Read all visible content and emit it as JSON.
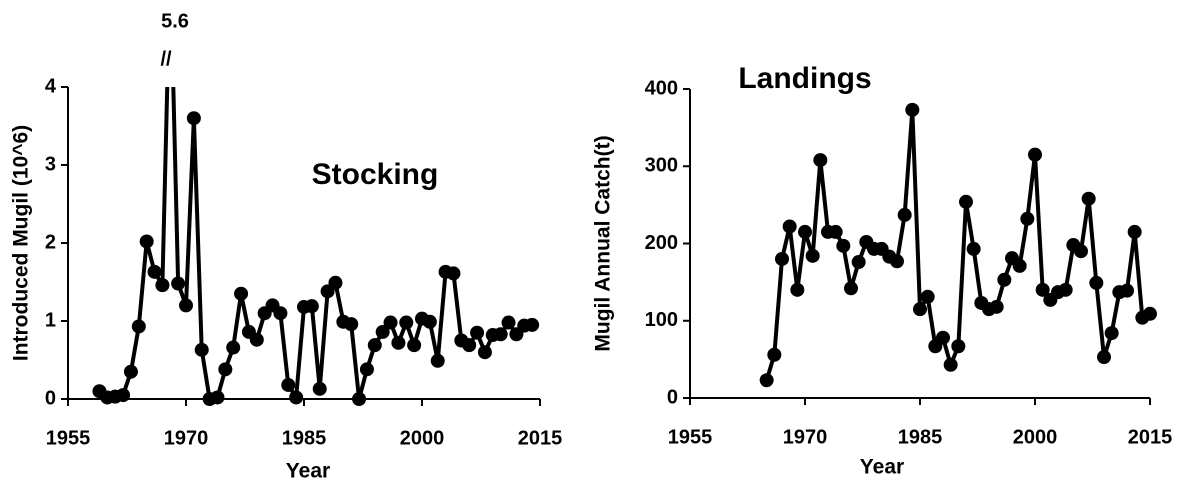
{
  "chart_data": [
    {
      "type": "line",
      "title": "Stocking",
      "x_label": "Year",
      "y_label": "Introduced  Mugil (10^6)",
      "peak_label": "5.6",
      "break_mark": "//",
      "color": "#000000",
      "x": [
        1959,
        1960,
        1961,
        1962,
        1963,
        1964,
        1965,
        1966,
        1967,
        1968,
        1969,
        1970,
        1971,
        1972,
        1973,
        1974,
        1975,
        1976,
        1977,
        1978,
        1979,
        1980,
        1981,
        1982,
        1983,
        1984,
        1985,
        1986,
        1987,
        1988,
        1989,
        1990,
        1991,
        1992,
        1993,
        1994,
        1995,
        1996,
        1997,
        1998,
        1999,
        2000,
        2001,
        2002,
        2003,
        2004,
        2005,
        2006,
        2007,
        2008,
        2009,
        2010,
        2011,
        2012,
        2013,
        2014
      ],
      "values": [
        0.1,
        0.02,
        0.03,
        0.05,
        0.35,
        0.93,
        2.02,
        1.63,
        1.46,
        5.6,
        1.48,
        1.2,
        3.6,
        0.63,
        0,
        0.02,
        0.38,
        0.66,
        1.35,
        0.86,
        0.76,
        1.1,
        1.2,
        1.1,
        0.18,
        0.02,
        1.18,
        1.19,
        0.13,
        1.38,
        1.49,
        0.99,
        0.96,
        0,
        0.38,
        0.69,
        0.86,
        0.98,
        0.72,
        0.98,
        0.69,
        1.03,
        0.99,
        0.49,
        1.63,
        1.61,
        0.75,
        0.69,
        0.85,
        0.6,
        0.82,
        0.83,
        0.98,
        0.83,
        0.94,
        0.95
      ],
      "xlim": [
        1955,
        2015
      ],
      "xticks": [
        1955,
        1970,
        1985,
        2000,
        2015
      ],
      "ylim": [
        0,
        4
      ],
      "yticks": [
        0,
        1,
        2,
        3,
        4
      ]
    },
    {
      "type": "line",
      "title": "Landings",
      "x_label": "Year",
      "y_label": "Mugil Annual Catch(t)",
      "color": "#000000",
      "x": [
        1965,
        1966,
        1967,
        1968,
        1969,
        1970,
        1971,
        1972,
        1973,
        1974,
        1975,
        1976,
        1977,
        1978,
        1979,
        1980,
        1981,
        1982,
        1983,
        1984,
        1985,
        1986,
        1987,
        1988,
        1989,
        1990,
        1991,
        1992,
        1993,
        1994,
        1995,
        1996,
        1997,
        1998,
        1999,
        2000,
        2001,
        2002,
        2003,
        2004,
        2005,
        2006,
        2007,
        2008,
        2009,
        2010,
        2011,
        2012,
        2013,
        2014,
        2015
      ],
      "values": [
        23,
        56,
        180,
        222,
        140,
        215,
        184,
        308,
        215,
        215,
        197,
        142,
        176,
        202,
        193,
        193,
        183,
        177,
        237,
        373,
        115,
        131,
        67,
        78,
        43,
        67,
        254,
        193,
        123,
        115,
        118,
        153,
        181,
        171,
        232,
        315,
        140,
        127,
        137,
        140,
        198,
        190,
        258,
        149,
        53,
        84,
        137,
        139,
        215,
        104,
        109
      ],
      "xlim": [
        1955,
        2015
      ],
      "xticks": [
        1955,
        1970,
        1985,
        2000,
        2015
      ],
      "ylim": [
        0,
        400
      ],
      "yticks": [
        0,
        100,
        200,
        300,
        400
      ]
    }
  ]
}
